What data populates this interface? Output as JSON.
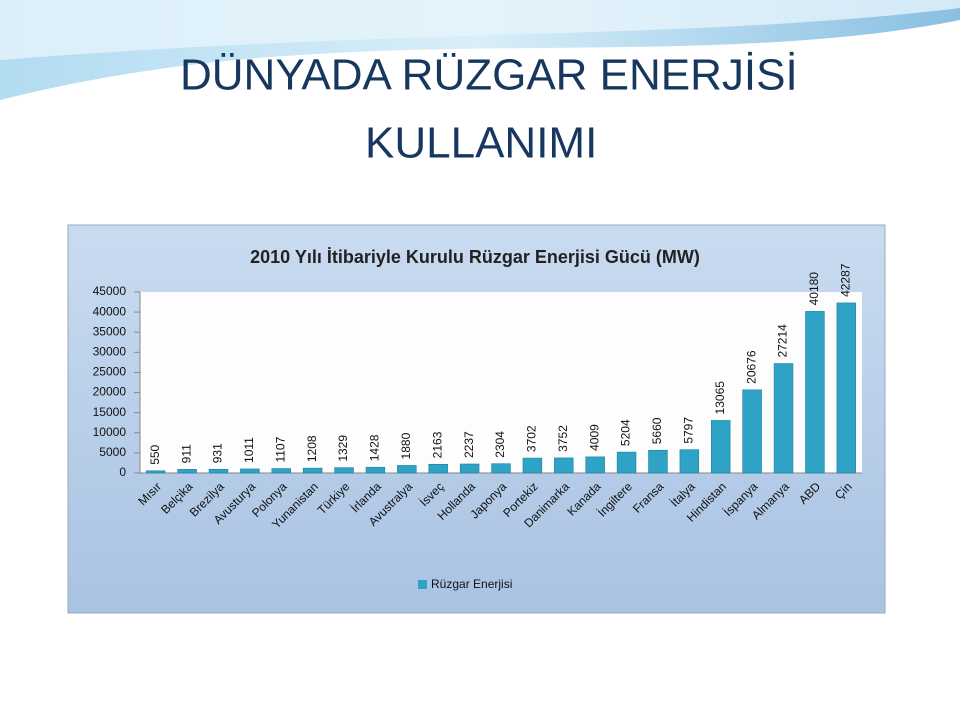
{
  "slide_title": [
    "DÜNYADA RÜZGAR ENERJİSİ",
    "KULLANIMI"
  ],
  "chart_data": {
    "type": "bar",
    "title": "2010 Yılı İtibariyle Kurulu Rüzgar Enerjisi Gücü (MW)",
    "categories": [
      "Mısır",
      "Belçika",
      "Brezilya",
      "Avusturya",
      "Polonya",
      "Yunanistan",
      "Türkiye",
      "İrlanda",
      "Avustralya",
      "İsveç",
      "Hollanda",
      "Japonya",
      "Portekiz",
      "Danimarka",
      "Kanada",
      "İngiltere",
      "Fransa",
      "İtalya",
      "Hindistan",
      "İspanya",
      "Almanya",
      "ABD",
      "Çin"
    ],
    "series": [
      {
        "name": "Rüzgar Enerjisi",
        "color": "#2fa3c6",
        "values": [
          550,
          911,
          931,
          1011,
          1107,
          1208,
          1329,
          1428,
          1880,
          2163,
          2237,
          2304,
          3702,
          3752,
          4009,
          5204,
          5660,
          5797,
          13065,
          20676,
          27214,
          40180,
          42287
        ]
      }
    ],
    "ylim": [
      0,
      45000
    ],
    "yticks": [
      0,
      5000,
      10000,
      15000,
      20000,
      25000,
      30000,
      35000,
      40000,
      45000
    ],
    "legend": "bottom"
  }
}
